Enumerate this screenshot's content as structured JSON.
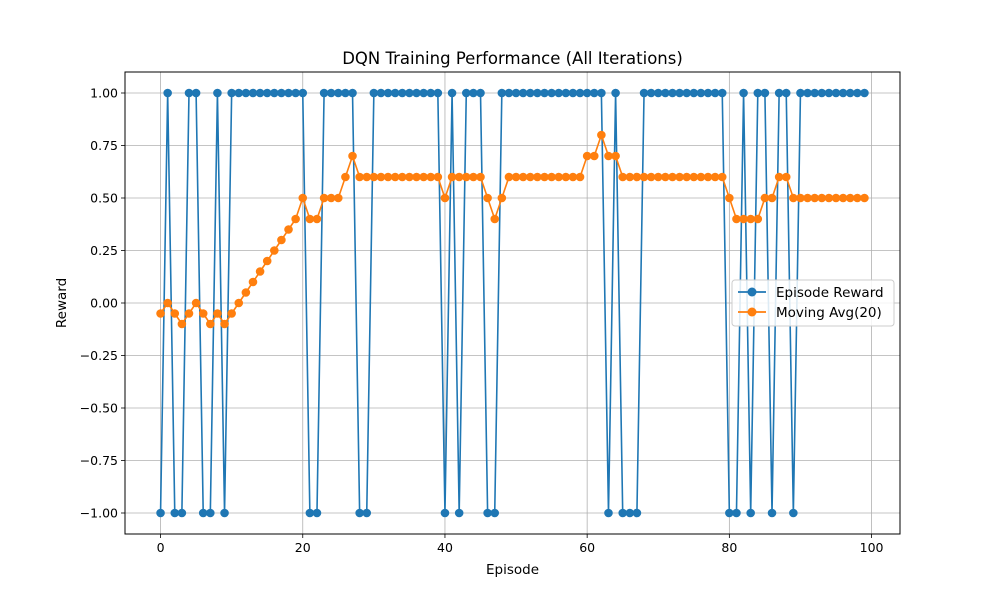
{
  "chart_data": {
    "type": "line",
    "title": "DQN Training Performance (All Iterations)",
    "xlabel": "Episode",
    "ylabel": "Reward",
    "xlim": [
      -5,
      104
    ],
    "ylim": [
      -1.1,
      1.1
    ],
    "xticks": [
      0,
      20,
      40,
      60,
      80,
      100
    ],
    "yticks": [
      -1.0,
      -0.75,
      -0.5,
      -0.25,
      0.0,
      0.25,
      0.5,
      0.75,
      1.0
    ],
    "grid": true,
    "legend_position": "center-right",
    "x": [
      0,
      1,
      2,
      3,
      4,
      5,
      6,
      7,
      8,
      9,
      10,
      11,
      12,
      13,
      14,
      15,
      16,
      17,
      18,
      19,
      20,
      21,
      22,
      23,
      24,
      25,
      26,
      27,
      28,
      29,
      30,
      31,
      32,
      33,
      34,
      35,
      36,
      37,
      38,
      39,
      40,
      41,
      42,
      43,
      44,
      45,
      46,
      47,
      48,
      49,
      50,
      51,
      52,
      53,
      54,
      55,
      56,
      57,
      58,
      59,
      60,
      61,
      62,
      63,
      64,
      65,
      66,
      67,
      68,
      69,
      70,
      71,
      72,
      73,
      74,
      75,
      76,
      77,
      78,
      79,
      80,
      81,
      82,
      83,
      84,
      85,
      86,
      87,
      88,
      89,
      90,
      91,
      92,
      93,
      94,
      95,
      96,
      97,
      98,
      99
    ],
    "series": [
      {
        "name": "Episode Reward",
        "color": "#1f77b4",
        "values": [
          -1,
          1,
          -1,
          -1,
          1,
          1,
          -1,
          -1,
          1,
          -1,
          1,
          1,
          1,
          1,
          1,
          1,
          1,
          1,
          1,
          1,
          1,
          -1,
          -1,
          1,
          1,
          1,
          1,
          1,
          -1,
          -1,
          1,
          1,
          1,
          1,
          1,
          1,
          1,
          1,
          1,
          1,
          -1,
          1,
          -1,
          1,
          1,
          1,
          -1,
          -1,
          1,
          1,
          1,
          1,
          1,
          1,
          1,
          1,
          1,
          1,
          1,
          1,
          1,
          1,
          1,
          -1,
          1,
          -1,
          -1,
          -1,
          1,
          1,
          1,
          1,
          1,
          1,
          1,
          1,
          1,
          1,
          1,
          1,
          -1,
          -1,
          1,
          -1,
          1,
          1,
          -1,
          1,
          1,
          -1,
          1,
          1,
          1,
          1,
          1,
          1,
          1,
          1,
          1,
          1
        ]
      },
      {
        "name": "Moving Avg(20)",
        "color": "#ff7f0e",
        "values": [
          -0.05,
          0,
          -0.05,
          -0.1,
          -0.05,
          0,
          -0.05,
          -0.1,
          -0.05,
          -0.1,
          -0.05,
          0,
          0.05,
          0.1,
          0.15,
          0.2,
          0.25,
          0.3,
          0.35,
          0.4,
          0.5,
          0.4,
          0.4,
          0.5,
          0.5,
          0.5,
          0.6,
          0.7,
          0.6,
          0.6,
          0.6,
          0.6,
          0.6,
          0.6,
          0.6,
          0.6,
          0.6,
          0.6,
          0.6,
          0.6,
          0.5,
          0.6,
          0.6,
          0.6,
          0.6,
          0.6,
          0.5,
          0.4,
          0.5,
          0.6,
          0.6,
          0.6,
          0.6,
          0.6,
          0.6,
          0.6,
          0.6,
          0.6,
          0.6,
          0.6,
          0.7,
          0.7,
          0.8,
          0.7,
          0.7,
          0.6,
          0.6,
          0.6,
          0.6,
          0.6,
          0.6,
          0.6,
          0.6,
          0.6,
          0.6,
          0.6,
          0.6,
          0.6,
          0.6,
          0.6,
          0.5,
          0.4,
          0.4,
          0.4,
          0.4,
          0.5,
          0.5,
          0.6,
          0.6,
          0.5,
          0.5,
          0.5,
          0.5,
          0.5,
          0.5,
          0.5,
          0.5,
          0.5,
          0.5,
          0.5
        ]
      }
    ]
  }
}
